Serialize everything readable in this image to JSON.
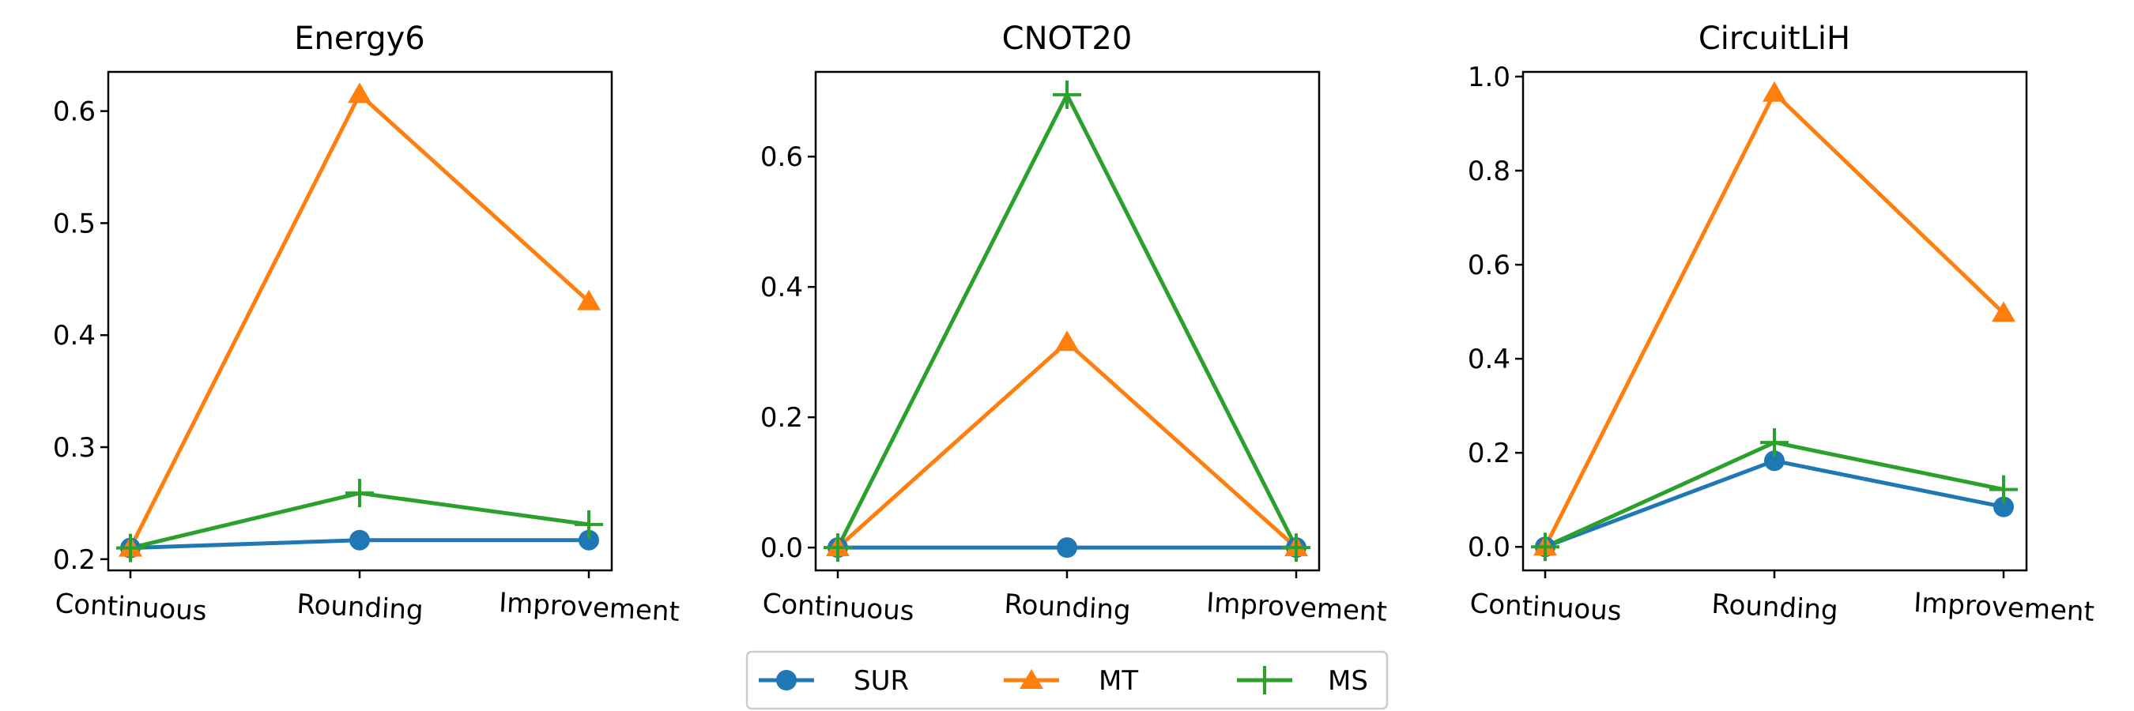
{
  "chart_data": [
    {
      "type": "line",
      "title": "Energy6",
      "categories": [
        "Continuous",
        "Rounding",
        "Improvement"
      ],
      "xlabel": "",
      "ylabel": "",
      "ylim": [
        0.19,
        0.635
      ],
      "yticks": [
        0.2,
        0.3,
        0.4,
        0.5,
        0.6
      ],
      "ytick_labels": [
        "0.2",
        "0.3",
        "0.4",
        "0.5",
        "0.6"
      ],
      "grid": false,
      "series": [
        {
          "name": "SUR",
          "values": [
            0.21,
            0.217,
            0.217
          ]
        },
        {
          "name": "MT",
          "values": [
            0.21,
            0.615,
            0.43
          ]
        },
        {
          "name": "MS",
          "values": [
            0.21,
            0.259,
            0.231
          ]
        }
      ]
    },
    {
      "type": "line",
      "title": "CNOT20",
      "categories": [
        "Continuous",
        "Rounding",
        "Improvement"
      ],
      "xlabel": "",
      "ylabel": "",
      "ylim": [
        -0.035,
        0.73
      ],
      "yticks": [
        0.0,
        0.2,
        0.4,
        0.6
      ],
      "ytick_labels": [
        "0.0",
        "0.2",
        "0.4",
        "0.6"
      ],
      "grid": false,
      "series": [
        {
          "name": "SUR",
          "values": [
            0.0,
            0.0,
            0.0
          ]
        },
        {
          "name": "MT",
          "values": [
            0.0,
            0.315,
            0.0
          ]
        },
        {
          "name": "MS",
          "values": [
            0.0,
            0.695,
            0.0
          ]
        }
      ]
    },
    {
      "type": "line",
      "title": "CircuitLiH",
      "categories": [
        "Continuous",
        "Rounding",
        "Improvement"
      ],
      "xlabel": "",
      "ylabel": "",
      "ylim": [
        -0.05,
        1.01
      ],
      "yticks": [
        0.0,
        0.2,
        0.4,
        0.6,
        0.8,
        1.0
      ],
      "ytick_labels": [
        "0.0",
        "0.2",
        "0.4",
        "0.6",
        "0.8",
        "1.0"
      ],
      "grid": false,
      "series": [
        {
          "name": "SUR",
          "values": [
            0.0,
            0.183,
            0.085
          ]
        },
        {
          "name": "MT",
          "values": [
            0.0,
            0.965,
            0.497
          ]
        },
        {
          "name": "MS",
          "values": [
            0.0,
            0.222,
            0.122
          ]
        }
      ]
    }
  ],
  "legend": {
    "placement": "bottom-center",
    "entries": [
      {
        "label": "SUR",
        "color": "#1f77b4",
        "marker": "circle"
      },
      {
        "label": "MT",
        "color": "#ff7f0e",
        "marker": "triangle-up"
      },
      {
        "label": "MS",
        "color": "#2ca02c",
        "marker": "plus"
      }
    ]
  },
  "colors": {
    "SUR": "#1f77b4",
    "MT": "#ff7f0e",
    "MS": "#2ca02c",
    "axes": "#000000",
    "background": "#ffffff"
  }
}
